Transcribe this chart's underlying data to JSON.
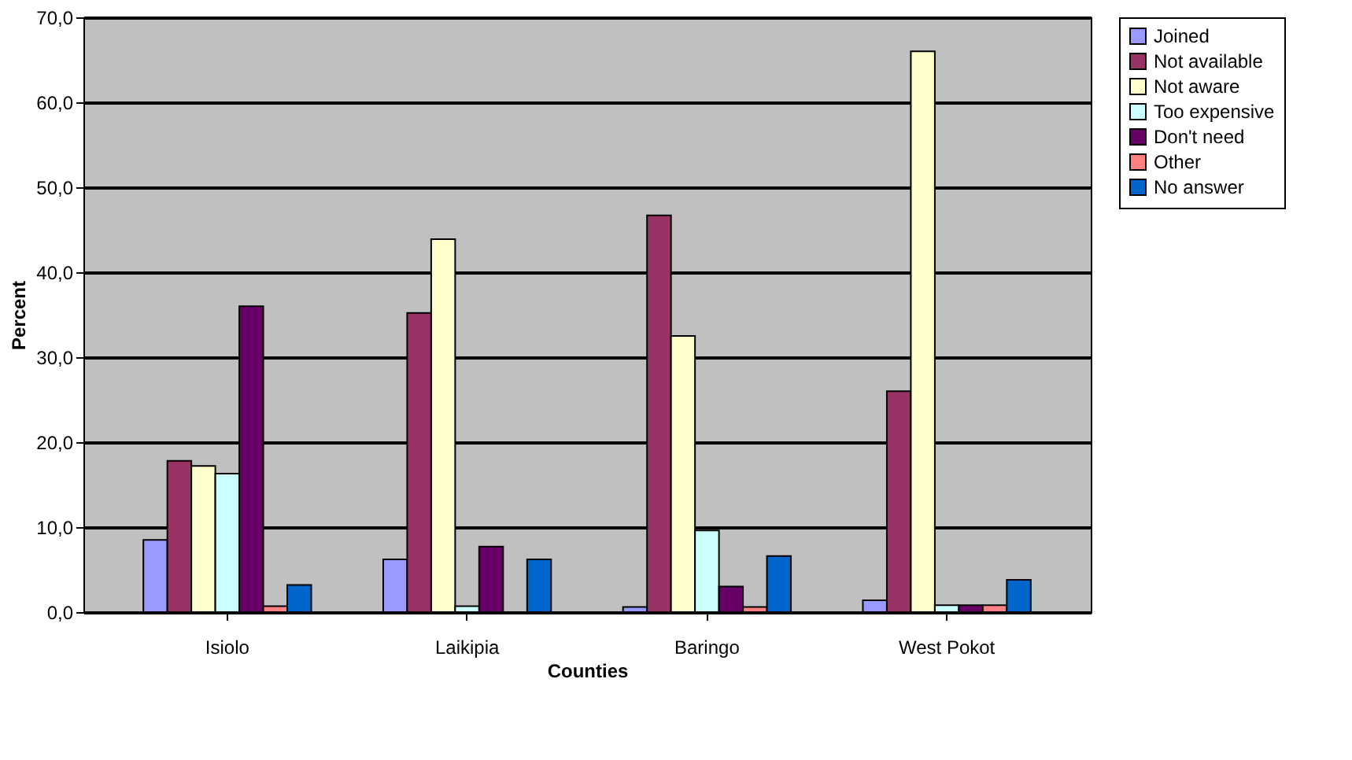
{
  "chart_data": {
    "type": "bar",
    "xlabel": "Counties",
    "ylabel": "Percent",
    "categories": [
      "Isiolo",
      "Laikipia",
      "Baringo",
      "West Pokot"
    ],
    "series": [
      {
        "name": "Joined",
        "color": "#9999ff",
        "values": [
          8.5,
          6.2,
          0.6,
          1.4
        ]
      },
      {
        "name": "Not available",
        "color": "#993366",
        "values": [
          17.8,
          35.2,
          46.7,
          26.0
        ]
      },
      {
        "name": "Not aware",
        "color": "#ffffcc",
        "values": [
          17.2,
          43.9,
          32.5,
          66.0
        ]
      },
      {
        "name": "Too expensive",
        "color": "#ccffff",
        "values": [
          16.3,
          0.7,
          9.6,
          0.8
        ]
      },
      {
        "name": "Don't need",
        "color": "#660066",
        "values": [
          36.0,
          7.7,
          3.0,
          0.8
        ]
      },
      {
        "name": "Other",
        "color": "#ff8080",
        "values": [
          0.7,
          null,
          0.6,
          0.8
        ]
      },
      {
        "name": "No answer",
        "color": "#0066cc",
        "values": [
          3.2,
          6.2,
          6.6,
          3.8
        ]
      }
    ],
    "ylim": [
      0,
      70
    ],
    "yticks": [
      {
        "value": 0,
        "label": "0,0"
      },
      {
        "value": 10,
        "label": "10,0"
      },
      {
        "value": 20,
        "label": "20,0"
      },
      {
        "value": 30,
        "label": "30,0"
      },
      {
        "value": 40,
        "label": "40,0"
      },
      {
        "value": 50,
        "label": "50,0"
      },
      {
        "value": 60,
        "label": "60,0"
      },
      {
        "value": 70,
        "label": "70,0"
      }
    ],
    "grid": "y",
    "legend": "right"
  }
}
